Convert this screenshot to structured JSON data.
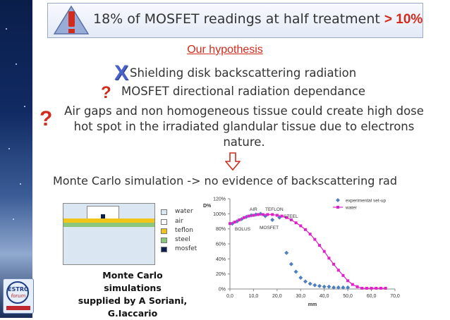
{
  "header": {
    "alert_icon": "exclamation-icon",
    "title_main": "18% of MOSFET readings at half treatment",
    "title_highlight": "> 10%"
  },
  "hypothesis_heading": "Our hypothesis",
  "hypotheses": [
    {
      "marker": "x-icon",
      "text": "Shielding disk backscattering radiation"
    },
    {
      "marker": "question-icon",
      "text": "MOSFET directional radiation dependance"
    },
    {
      "marker": "question-icon",
      "text": "Air gaps and non homogeneous tissue could create high dose hot spot in the irradiated glandular tissue due to electrons nature."
    }
  ],
  "conclusion": "Monte Carlo simulation -> no evidence of backscattering rad",
  "model_legend": [
    {
      "label": "water",
      "color": "#dbe6f3"
    },
    {
      "label": "air",
      "color": "#ffffff"
    },
    {
      "label": "teflon",
      "color": "#f0c419"
    },
    {
      "label": "steel",
      "color": "#8cc67a"
    },
    {
      "label": "mosfet",
      "color": "#0d1f4f"
    }
  ],
  "credit": [
    "Monte Carlo simulations",
    "supplied by A Soriani,",
    "G.Iaccario"
  ],
  "logo": {
    "text": "ESTRO",
    "subtext": "forum"
  },
  "chart_data": {
    "type": "scatter",
    "ylabel": "D%",
    "xlabel": "mm",
    "xlim": [
      0,
      70
    ],
    "ylim": [
      0,
      120
    ],
    "xticks": [
      "0,0",
      "10,0",
      "20,0",
      "30,0",
      "40,0",
      "50,0",
      "60,0",
      "70,0"
    ],
    "yticks": [
      "0%",
      "20%",
      "40%",
      "60%",
      "80%",
      "100%",
      "120%"
    ],
    "grid": false,
    "legend_position": "top-right",
    "annotations": [
      "AIR",
      "TEFLON",
      "STEEL",
      "BOLUS",
      "MOSFET"
    ],
    "series": [
      {
        "name": "experimental set-up",
        "color": "#4f7fbf",
        "marker": "diamond",
        "x": [
          1,
          3,
          5,
          7,
          9,
          11,
          13,
          15,
          18,
          21,
          24,
          26,
          28,
          30,
          32,
          34,
          36,
          38,
          40,
          42,
          44,
          46,
          48,
          50
        ],
        "y": [
          87,
          90,
          93,
          96,
          98,
          99,
          100,
          97,
          92,
          95,
          48,
          33,
          23,
          15,
          10,
          7,
          5,
          4,
          3,
          3,
          2,
          2,
          2,
          2
        ]
      },
      {
        "name": "water",
        "color": "#e020c8",
        "marker": "square",
        "x": [
          0,
          2,
          4,
          6,
          8,
          10,
          12,
          14,
          16,
          18,
          20,
          22,
          24,
          26,
          28,
          30,
          32,
          34,
          36,
          38,
          40,
          42,
          44,
          46,
          48,
          50,
          52,
          54,
          56,
          58,
          60,
          62,
          64,
          66
        ],
        "y": [
          87,
          89,
          92,
          95,
          97,
          98,
          99,
          99,
          99,
          99,
          98,
          97,
          95,
          92,
          88,
          84,
          79,
          73,
          66,
          58,
          50,
          41,
          33,
          25,
          18,
          11,
          6,
          3,
          1,
          1,
          1,
          1,
          1,
          1
        ]
      }
    ]
  }
}
